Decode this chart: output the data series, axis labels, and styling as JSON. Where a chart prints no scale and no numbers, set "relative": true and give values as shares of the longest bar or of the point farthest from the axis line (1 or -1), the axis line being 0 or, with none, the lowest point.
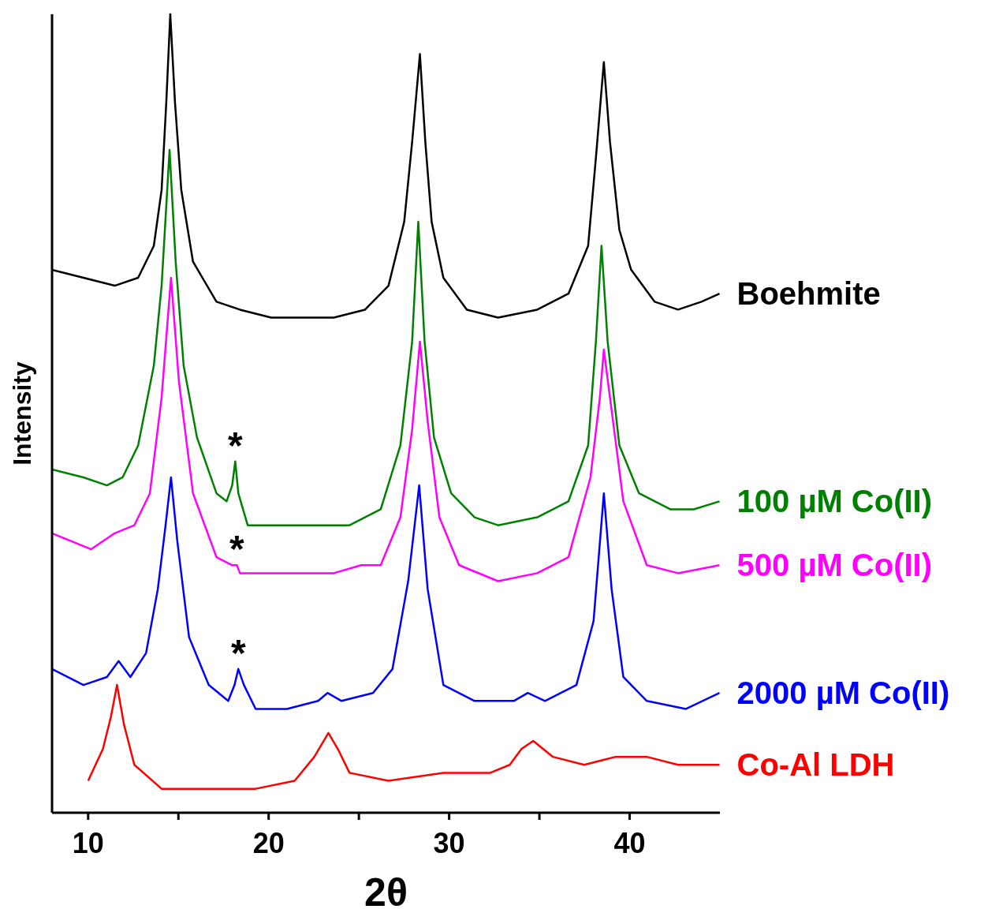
{
  "chart_data": {
    "type": "line",
    "relative": true,
    "xlabel": "2θ",
    "ylabel": "Intensity",
    "xlim": [
      8,
      45
    ],
    "xticks": [
      10,
      {
        "value": 15,
        "label": null
      },
      20,
      {
        "value": 25,
        "label": null
      },
      30,
      {
        "value": 35,
        "label": null
      },
      40
    ],
    "grid": false,
    "legend": false,
    "marker": "none",
    "line_style": "solid",
    "series": [
      {
        "name": "Boehmite",
        "color": "#000000",
        "x": [
          8.0,
          9.74,
          11.47,
          12.77,
          13.64,
          14.07,
          14.33,
          14.55,
          14.81,
          15.16,
          15.81,
          17.11,
          18.41,
          20.14,
          21.88,
          23.61,
          25.34,
          26.64,
          27.51,
          27.95,
          28.38,
          28.68,
          29.03,
          29.68,
          30.98,
          32.71,
          34.88,
          36.61,
          37.7,
          38.13,
          38.57,
          38.91,
          39.43,
          40.08,
          41.38,
          42.68,
          43.98,
          44.98
        ],
        "values": [
          0.68,
          0.67,
          0.66,
          0.67,
          0.71,
          0.78,
          0.89,
          1.0,
          0.89,
          0.78,
          0.69,
          0.64,
          0.63,
          0.62,
          0.62,
          0.62,
          0.63,
          0.66,
          0.74,
          0.84,
          0.95,
          0.84,
          0.74,
          0.67,
          0.63,
          0.62,
          0.63,
          0.65,
          0.71,
          0.82,
          0.94,
          0.84,
          0.73,
          0.68,
          0.64,
          0.63,
          0.64,
          0.65
        ]
      },
      {
        "name": "100 µM Co(II)",
        "color": "#008000",
        "x": [
          8.0,
          9.74,
          11.04,
          11.91,
          12.77,
          13.64,
          14.07,
          14.51,
          14.85,
          15.29,
          16.03,
          17.11,
          17.67,
          17.98,
          18.15,
          18.32,
          18.84,
          21.01,
          22.74,
          24.48,
          26.21,
          27.3,
          27.95,
          28.29,
          28.64,
          29.16,
          30.11,
          31.41,
          32.71,
          34.88,
          36.61,
          37.7,
          38.13,
          38.44,
          38.78,
          39.43,
          40.52,
          42.25,
          43.55,
          44.98
        ],
        "values": [
          0.43,
          0.42,
          0.41,
          0.42,
          0.46,
          0.56,
          0.66,
          0.83,
          0.69,
          0.56,
          0.47,
          0.4,
          0.39,
          0.41,
          0.44,
          0.4,
          0.36,
          0.36,
          0.36,
          0.36,
          0.38,
          0.46,
          0.59,
          0.74,
          0.59,
          0.47,
          0.4,
          0.37,
          0.36,
          0.37,
          0.39,
          0.46,
          0.59,
          0.71,
          0.59,
          0.46,
          0.4,
          0.38,
          0.38,
          0.39
        ]
      },
      {
        "name": "500 µM Co(II)",
        "color": "#ff00ff",
        "x": [
          8.0,
          10.17,
          11.47,
          12.56,
          13.42,
          14.07,
          14.59,
          15.03,
          15.81,
          17.11,
          17.98,
          18.24,
          18.41,
          19.71,
          21.88,
          23.61,
          25.13,
          26.21,
          27.3,
          27.95,
          28.38,
          28.81,
          29.46,
          30.55,
          32.71,
          34.88,
          36.61,
          37.83,
          38.35,
          38.57,
          38.91,
          39.65,
          40.95,
          42.68,
          44.98
        ],
        "values": [
          0.35,
          0.33,
          0.35,
          0.36,
          0.4,
          0.52,
          0.67,
          0.54,
          0.4,
          0.32,
          0.31,
          0.31,
          0.3,
          0.3,
          0.3,
          0.3,
          0.31,
          0.31,
          0.37,
          0.48,
          0.59,
          0.49,
          0.37,
          0.31,
          0.29,
          0.3,
          0.32,
          0.42,
          0.52,
          0.58,
          0.52,
          0.39,
          0.31,
          0.3,
          0.31
        ]
      },
      {
        "name": "2000 µM Co(II)",
        "color": "#0000ff",
        "x": [
          8.0,
          9.74,
          11.04,
          11.69,
          12.34,
          13.21,
          13.86,
          14.29,
          14.59,
          14.94,
          15.59,
          16.68,
          17.76,
          18.11,
          18.32,
          18.63,
          19.28,
          21.01,
          22.74,
          23.26,
          24.04,
          25.78,
          26.86,
          27.73,
          28.34,
          28.81,
          29.68,
          31.41,
          33.58,
          34.36,
          35.31,
          37.05,
          38.0,
          38.57,
          39.0,
          39.65,
          40.95,
          43.12,
          44.98
        ],
        "values": [
          0.18,
          0.16,
          0.17,
          0.19,
          0.17,
          0.2,
          0.28,
          0.36,
          0.42,
          0.34,
          0.22,
          0.16,
          0.14,
          0.16,
          0.18,
          0.16,
          0.13,
          0.13,
          0.14,
          0.15,
          0.14,
          0.15,
          0.18,
          0.29,
          0.41,
          0.28,
          0.16,
          0.14,
          0.14,
          0.15,
          0.14,
          0.16,
          0.24,
          0.4,
          0.28,
          0.17,
          0.14,
          0.13,
          0.15
        ]
      },
      {
        "name": "Co-Al LDH",
        "color": "#ff0000",
        "x": [
          10.0,
          10.82,
          11.26,
          11.6,
          11.99,
          12.56,
          14.07,
          16.68,
          19.28,
          21.44,
          22.53,
          23.31,
          23.83,
          24.48,
          26.64,
          29.68,
          32.28,
          33.36,
          34.01,
          34.66,
          35.75,
          37.48,
          39.22,
          40.95,
          42.68,
          44.98
        ],
        "values": [
          0.04,
          0.08,
          0.12,
          0.16,
          0.11,
          0.06,
          0.03,
          0.03,
          0.03,
          0.04,
          0.07,
          0.1,
          0.08,
          0.05,
          0.04,
          0.05,
          0.05,
          0.06,
          0.08,
          0.09,
          0.07,
          0.06,
          0.07,
          0.07,
          0.06,
          0.06
        ]
      }
    ],
    "annotations": [
      {
        "text": "*",
        "x": 18.15,
        "y": 0.44
      },
      {
        "text": "*",
        "x": 18.24,
        "y": 0.31
      },
      {
        "text": "*",
        "x": 18.32,
        "y": 0.18
      }
    ]
  }
}
